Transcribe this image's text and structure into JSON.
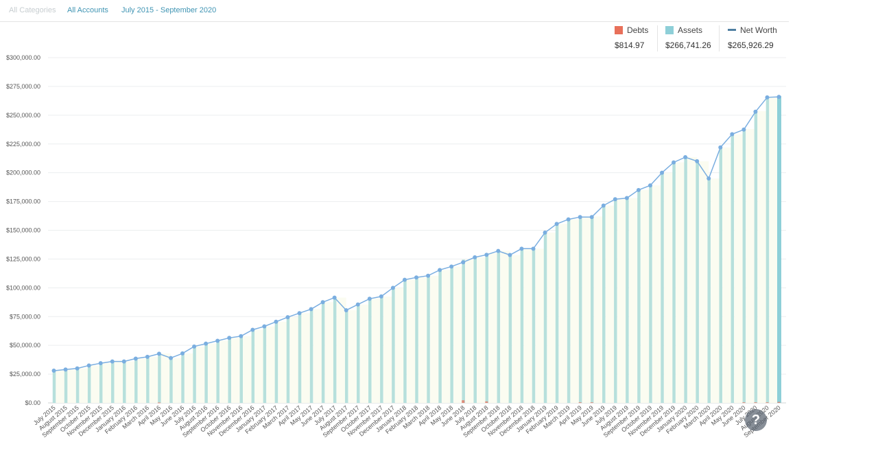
{
  "filters": {
    "categories": "All Categories",
    "accounts": "All Accounts",
    "date_range": "July 2015 - September 2020"
  },
  "legend": {
    "debts": {
      "label": "Debts",
      "value": "$814.97",
      "color": "#e8705a"
    },
    "assets": {
      "label": "Assets",
      "value": "$266,741.26",
      "color": "#8ecfd8"
    },
    "net_worth": {
      "label": "Net Worth",
      "value": "$265,926.29",
      "color": "#4f7fa1"
    }
  },
  "help": {
    "label": "?"
  },
  "chart_data": {
    "type": "bar",
    "title": "",
    "xlabel": "",
    "ylabel": "",
    "ylim": [
      0,
      300000
    ],
    "yticks": [
      0,
      25000,
      50000,
      75000,
      100000,
      125000,
      150000,
      175000,
      200000,
      225000,
      250000,
      275000,
      300000
    ],
    "ytick_labels": [
      "$0.00",
      "$25,000.00",
      "$50,000.00",
      "$75,000.00",
      "$100,000.00",
      "$125,000.00",
      "$150,000.00",
      "$175,000.00",
      "$200,000.00",
      "$225,000.00",
      "$250,000.00",
      "$275,000.00",
      "$300,000.00"
    ],
    "grid": true,
    "legend_position": "top-right",
    "categories": [
      "July 2015",
      "August 2015",
      "September 2015",
      "October 2015",
      "November 2015",
      "December 2015",
      "January 2016",
      "February 2016",
      "March 2016",
      "April 2016",
      "May 2016",
      "June 2016",
      "July 2016",
      "August 2016",
      "September 2016",
      "October 2016",
      "November 2016",
      "December 2016",
      "January 2017",
      "February 2017",
      "March 2017",
      "April 2017",
      "May 2017",
      "June 2017",
      "July 2017",
      "August 2017",
      "September 2017",
      "October 2017",
      "November 2017",
      "December 2017",
      "January 2018",
      "February 2018",
      "March 2018",
      "April 2018",
      "May 2018",
      "June 2018",
      "July 2018",
      "August 2018",
      "September 2018",
      "October 2018",
      "November 2018",
      "December 2018",
      "January 2019",
      "February 2019",
      "March 2019",
      "April 2019",
      "May 2019",
      "June 2019",
      "July 2019",
      "August 2019",
      "September 2019",
      "October 2019",
      "November 2019",
      "December 2019",
      "January 2020",
      "February 2020",
      "March 2020",
      "April 2020",
      "May 2020",
      "June 2020",
      "July 2020",
      "August 2020",
      "September 2020"
    ],
    "series": [
      {
        "name": "Debts",
        "type": "bar",
        "color": "#e8705a",
        "values": [
          0,
          0,
          0,
          0,
          0,
          0,
          0,
          0,
          0,
          300,
          0,
          0,
          0,
          0,
          0,
          0,
          0,
          0,
          0,
          0,
          0,
          0,
          0,
          0,
          0,
          0,
          0,
          0,
          0,
          0,
          0,
          0,
          0,
          0,
          0,
          2300,
          0,
          1300,
          0,
          0,
          0,
          0,
          0,
          0,
          0,
          500,
          500,
          0,
          0,
          0,
          0,
          0,
          0,
          0,
          0,
          0,
          0,
          0,
          0,
          500,
          500,
          500,
          815
        ]
      },
      {
        "name": "Assets",
        "type": "bar",
        "color": "#b7e0dc",
        "values": [
          28000,
          29000,
          30000,
          32500,
          34500,
          36000,
          36000,
          38500,
          40000,
          43000,
          39000,
          43000,
          49000,
          51500,
          54000,
          56500,
          58000,
          63500,
          66500,
          70500,
          74500,
          78000,
          81500,
          87500,
          91500,
          80500,
          85500,
          90500,
          92500,
          100000,
          107000,
          109000,
          110500,
          115500,
          118500,
          124500,
          126500,
          130000,
          132000,
          128500,
          134000,
          134000,
          148000,
          155500,
          159500,
          162000,
          162000,
          171500,
          177000,
          178000,
          185000,
          189000,
          200000,
          209000,
          213500,
          210000,
          195000,
          222000,
          233500,
          238000,
          253500,
          266000,
          266741.26
        ]
      },
      {
        "name": "Net Worth",
        "type": "line",
        "color": "#7aaee0",
        "values": [
          28000,
          29000,
          30000,
          32500,
          34500,
          36000,
          36000,
          38500,
          40000,
          42700,
          39000,
          43000,
          49000,
          51500,
          54000,
          56500,
          58000,
          63500,
          66500,
          70500,
          74500,
          78000,
          81500,
          87500,
          91500,
          80500,
          85500,
          90500,
          92500,
          100000,
          107000,
          109000,
          110500,
          115500,
          118500,
          122200,
          126500,
          128700,
          132000,
          128500,
          134000,
          134000,
          148000,
          155500,
          159500,
          161500,
          161500,
          171500,
          177000,
          178000,
          185000,
          189000,
          200000,
          209000,
          213500,
          210000,
          195000,
          222000,
          233500,
          237500,
          253000,
          265500,
          265926.29
        ]
      }
    ],
    "highlight_index": 62
  }
}
